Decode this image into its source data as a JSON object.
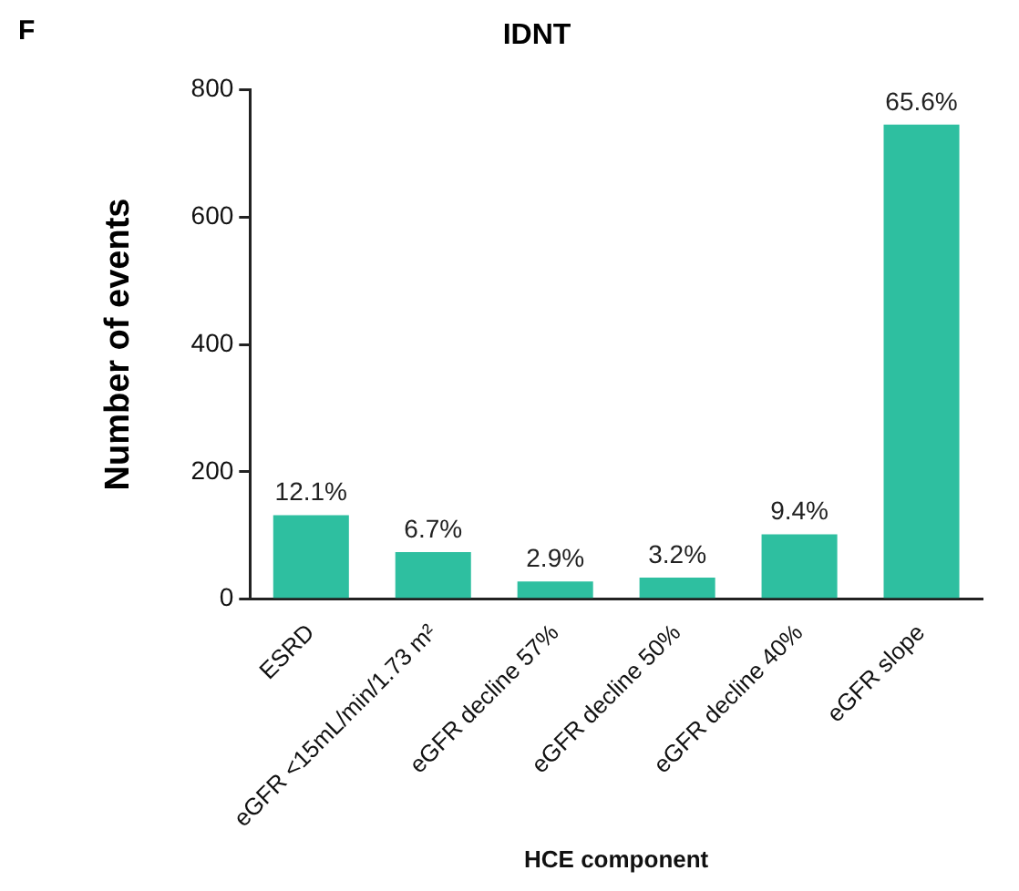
{
  "chart_data": {
    "type": "bar",
    "title": "IDNT",
    "xlabel": "HCE component",
    "ylabel": "Number of events",
    "categories": [
      "ESRD",
      "eGFR <15mL/min/1.73 m²",
      "eGFR decline 57%",
      "eGFR decline 50%",
      "eGFR decline 40%",
      "eGFR slope"
    ],
    "values": [
      132,
      74,
      28,
      34,
      102,
      745
    ],
    "color": "#2ebfa0",
    "ylim": [
      0,
      800
    ],
    "yticks": [
      0,
      200,
      400,
      600,
      800
    ],
    "grid": false,
    "legend": false,
    "annotations": [
      "F",
      {
        "text": "12.1%",
        "x": "ESRD",
        "y": 132
      },
      {
        "text": "6.7%",
        "x": "eGFR <15mL/min/1.73 m²",
        "y": 74
      },
      {
        "text": "2.9%",
        "x": "eGFR decline 57%",
        "y": 28
      },
      {
        "text": "3.2%",
        "x": "eGFR decline 50%",
        "y": 34
      },
      {
        "text": "9.4%",
        "x": "eGFR decline 40%",
        "y": 102
      },
      {
        "text": "65.6%",
        "x": "eGFR slope",
        "y": 745
      }
    ]
  }
}
